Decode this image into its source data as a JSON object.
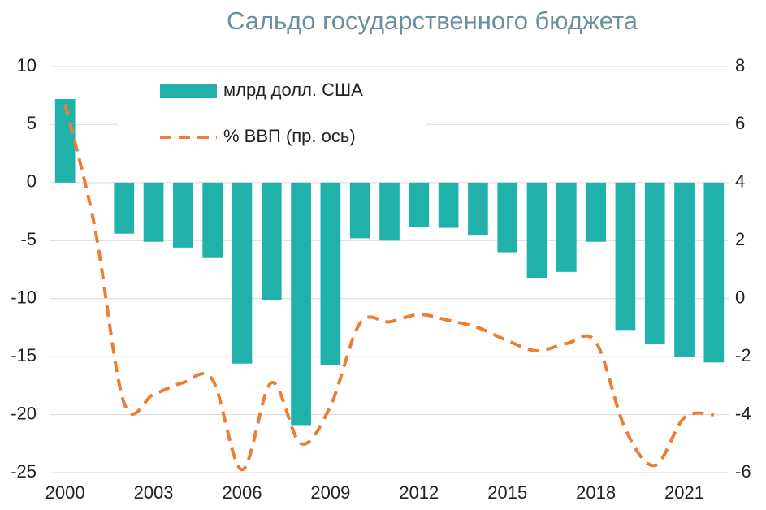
{
  "chart_data": {
    "type": "bar_line",
    "title": "Сальдо государственного бюджета",
    "categories": [
      "2000",
      null,
      null,
      "2003",
      null,
      null,
      "2006",
      null,
      null,
      "2009",
      null,
      null,
      "2012",
      null,
      null,
      "2015",
      null,
      null,
      "2018",
      null,
      null,
      "2021",
      null
    ],
    "series": [
      {
        "name": "млрд долл. США",
        "type": "bar",
        "color": "#20b2aa",
        "axis": "y",
        "values": [
          7.2,
          null,
          -4.4,
          -5.1,
          -5.6,
          -6.5,
          -15.6,
          -10.1,
          -20.9,
          -15.7,
          -4.8,
          -5.0,
          -3.8,
          -3.9,
          -4.5,
          -6.0,
          -8.2,
          -7.7,
          -5.1,
          -12.7,
          -13.9,
          -15.0,
          -15.5
        ]
      },
      {
        "name": "% ВВП (пр. ось)",
        "type": "line",
        "dashed": true,
        "color": "#ed7d31",
        "axis": "y2",
        "values": [
          6.7,
          2.5,
          -3.6,
          -3.3,
          -2.9,
          -2.8,
          -5.9,
          -2.9,
          -5.0,
          -3.7,
          -0.85,
          -0.8,
          -0.55,
          -0.75,
          -1.0,
          -1.45,
          -1.8,
          -1.55,
          -1.5,
          -4.5,
          -5.75,
          -4.1,
          -4.0
        ]
      }
    ],
    "ylim": [
      -25,
      10
    ],
    "yticks": [
      -25,
      -20,
      -15,
      -10,
      -5,
      0,
      5,
      10
    ],
    "y2lim": [
      -6,
      8
    ],
    "y2ticks": [
      -6,
      -4,
      -2,
      0,
      2,
      4,
      6,
      8
    ],
    "grid": true,
    "legend": "top-left"
  }
}
